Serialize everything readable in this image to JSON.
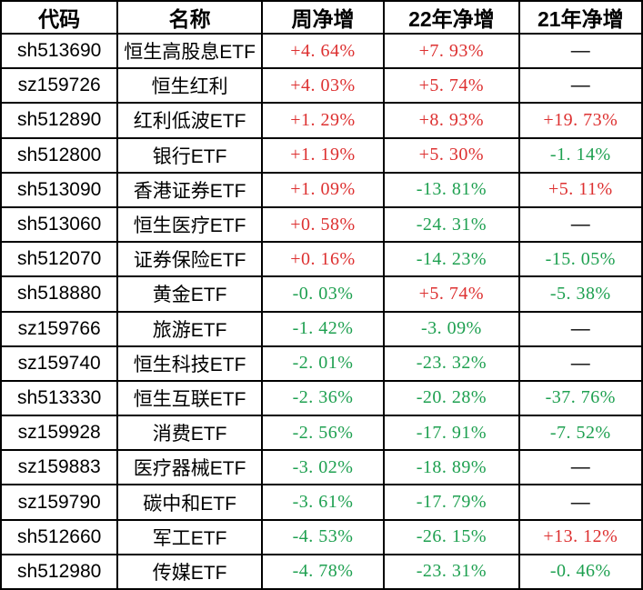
{
  "colors": {
    "positive_red": "#dd3030",
    "negative_green": "#1ea050",
    "text_black": "#000000",
    "grid_border": "#000000",
    "background": "#ffffff"
  },
  "chart_data": {
    "type": "table",
    "title": "",
    "columns": [
      "代码",
      "名称",
      "周净增",
      "22年净增",
      "21年净增"
    ],
    "rows": [
      [
        "sh513690",
        "恒生高股息ETF",
        "+4. 64%",
        "+7. 93%",
        "—"
      ],
      [
        "sz159726",
        "恒生红利",
        "+4. 03%",
        "+5. 74%",
        "—"
      ],
      [
        "sh512890",
        "红利低波ETF",
        "+1. 29%",
        "+8. 93%",
        "+19. 73%"
      ],
      [
        "sh512800",
        "银行ETF",
        "+1. 19%",
        "+5. 30%",
        "-1. 14%"
      ],
      [
        "sh513090",
        "香港证券ETF",
        "+1. 09%",
        "-13. 81%",
        "+5. 11%"
      ],
      [
        "sh513060",
        "恒生医疗ETF",
        "+0. 58%",
        "-24. 31%",
        "—"
      ],
      [
        "sh512070",
        "证券保险ETF",
        "+0. 16%",
        "-14. 23%",
        "-15. 05%"
      ],
      [
        "sh518880",
        "黄金ETF",
        "-0. 03%",
        "+5. 74%",
        "-5. 38%"
      ],
      [
        "sz159766",
        "旅游ETF",
        "-1. 42%",
        "-3. 09%",
        "—"
      ],
      [
        "sz159740",
        "恒生科技ETF",
        "-2. 01%",
        "-23. 32%",
        "—"
      ],
      [
        "sh513330",
        "恒生互联ETF",
        "-2. 36%",
        "-20. 28%",
        "-37. 76%"
      ],
      [
        "sz159928",
        "消费ETF",
        "-2. 56%",
        "-17. 91%",
        "-7. 52%"
      ],
      [
        "sz159883",
        "医疗器械ETF",
        "-3. 02%",
        "-18. 89%",
        "—"
      ],
      [
        "sz159790",
        "碳中和ETF",
        "-3. 61%",
        "-17. 79%",
        "—"
      ],
      [
        "sh512660",
        "军工ETF",
        "-4. 53%",
        "-26. 15%",
        "+13. 12%"
      ],
      [
        "sh512980",
        "传媒ETF",
        "-4. 78%",
        "-23. 31%",
        "-0. 46%"
      ]
    ]
  }
}
